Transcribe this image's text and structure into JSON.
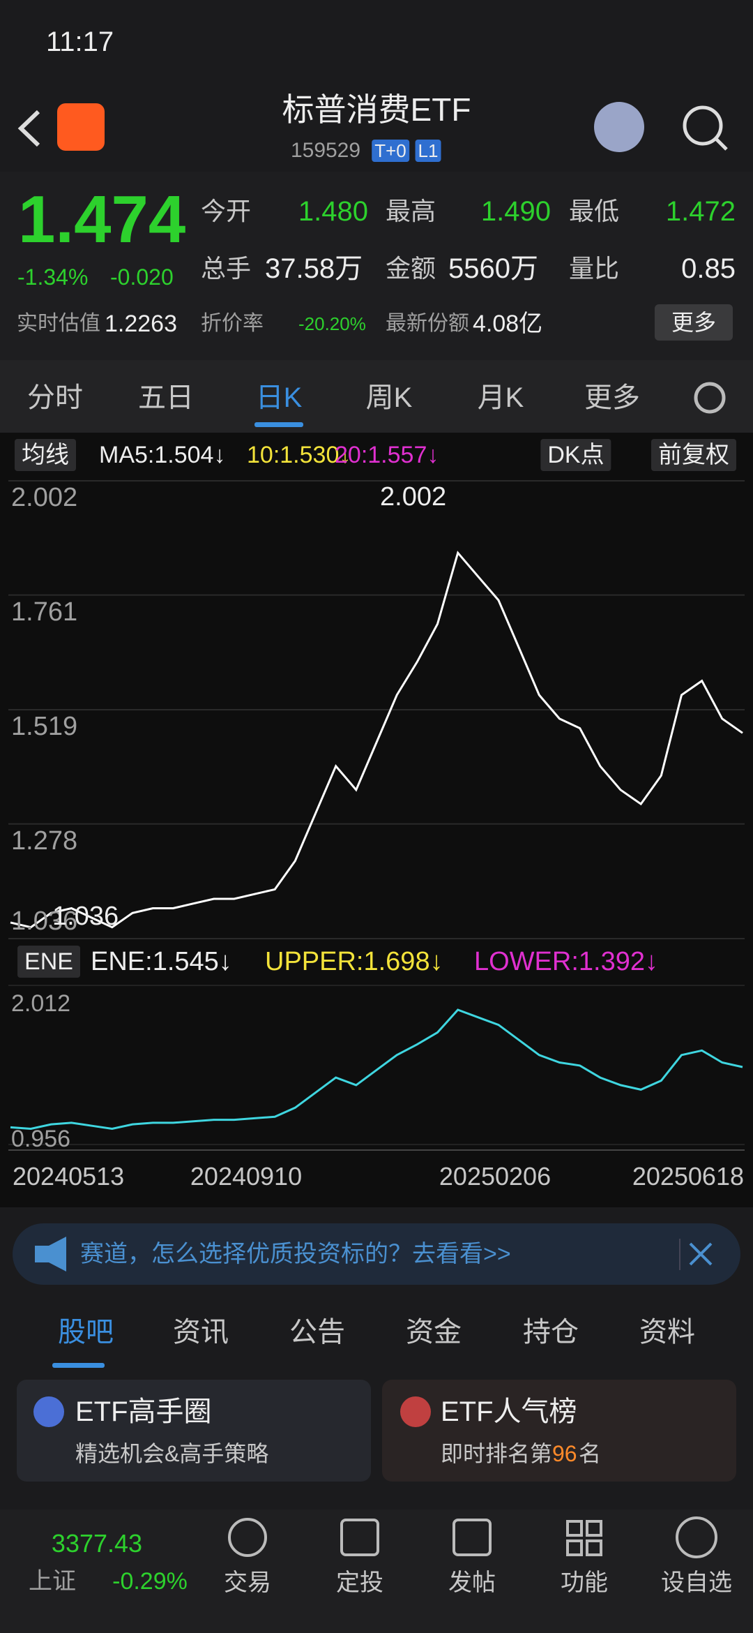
{
  "status": {
    "time": "11:17"
  },
  "header": {
    "title": "标普消费ETF",
    "code": "159529",
    "tags": [
      "T+0",
      "L1"
    ]
  },
  "quote": {
    "price": "1.474",
    "change_pct": "-1.34%",
    "change": "-0.020",
    "fields": [
      [
        "今开",
        "1.480"
      ],
      [
        "最高",
        "1.490"
      ],
      [
        "最低",
        "1.472"
      ],
      [
        "总手",
        "37.58万"
      ],
      [
        "金额",
        "5560万"
      ],
      [
        "量比",
        "0.85"
      ]
    ],
    "extra": [
      [
        "实时估值",
        "1.2263"
      ],
      [
        "折价率",
        "-20.20%"
      ],
      [
        "最新份额",
        "4.08亿"
      ]
    ],
    "more": "更多"
  },
  "period_tabs": [
    "分时",
    "五日",
    "日K",
    "周K",
    "月K",
    "更多"
  ],
  "ma_bar": {
    "selector": "均线",
    "ma5": "MA5:1.504↓",
    "ma10": "10:1.530↓",
    "ma20": "20:1.557↓",
    "dk": "DK点",
    "adjust": "前复权"
  },
  "chart_data": {
    "type": "line",
    "ylim": [
      1.036,
      2.002
    ],
    "yticks": [
      2.002,
      1.761,
      1.519,
      1.278,
      1.036
    ],
    "values": [
      1.07,
      1.06,
      1.09,
      1.1,
      1.08,
      1.06,
      1.09,
      1.1,
      1.1,
      1.11,
      1.12,
      1.12,
      1.13,
      1.14,
      1.2,
      1.3,
      1.4,
      1.35,
      1.45,
      1.55,
      1.62,
      1.7,
      1.85,
      1.8,
      1.75,
      1.65,
      1.55,
      1.5,
      1.48,
      1.4,
      1.35,
      1.32,
      1.38,
      1.55,
      1.58,
      1.5,
      1.47
    ],
    "color": "#ffffff",
    "grid": true,
    "annotations": [
      "2.002",
      "1.036"
    ],
    "xticks": [
      "20240513",
      "20240910",
      "20250206",
      "20250618"
    ]
  },
  "ene_bar": {
    "selector": "ENE",
    "ene": "ENE:1.545↓",
    "upper": "UPPER:1.698↓",
    "lower": "LOWER:1.392↓"
  },
  "sub_chart": {
    "ylim": [
      0.956,
      2.012
    ],
    "yticks": [
      2.012,
      0.956
    ],
    "color": "#3fd6e0"
  },
  "banner": {
    "text": "赛道，怎么选择优质投资标的？去看看>>"
  },
  "section_tabs": [
    "股吧",
    "资讯",
    "公告",
    "资金",
    "持仓",
    "资料"
  ],
  "cards": [
    {
      "title": "ETF高手圈",
      "subtitle": "精选机会&高手策略"
    },
    {
      "title": "ETF人气榜",
      "subtitle": [
        "即时排名第",
        "96",
        "名"
      ]
    }
  ],
  "bottom_nav": {
    "index_value": "3377.43",
    "index_name": "上证",
    "index_change": "-0.29%",
    "items": [
      "交易",
      "定投",
      "发帖",
      "功能",
      "设自选"
    ]
  }
}
